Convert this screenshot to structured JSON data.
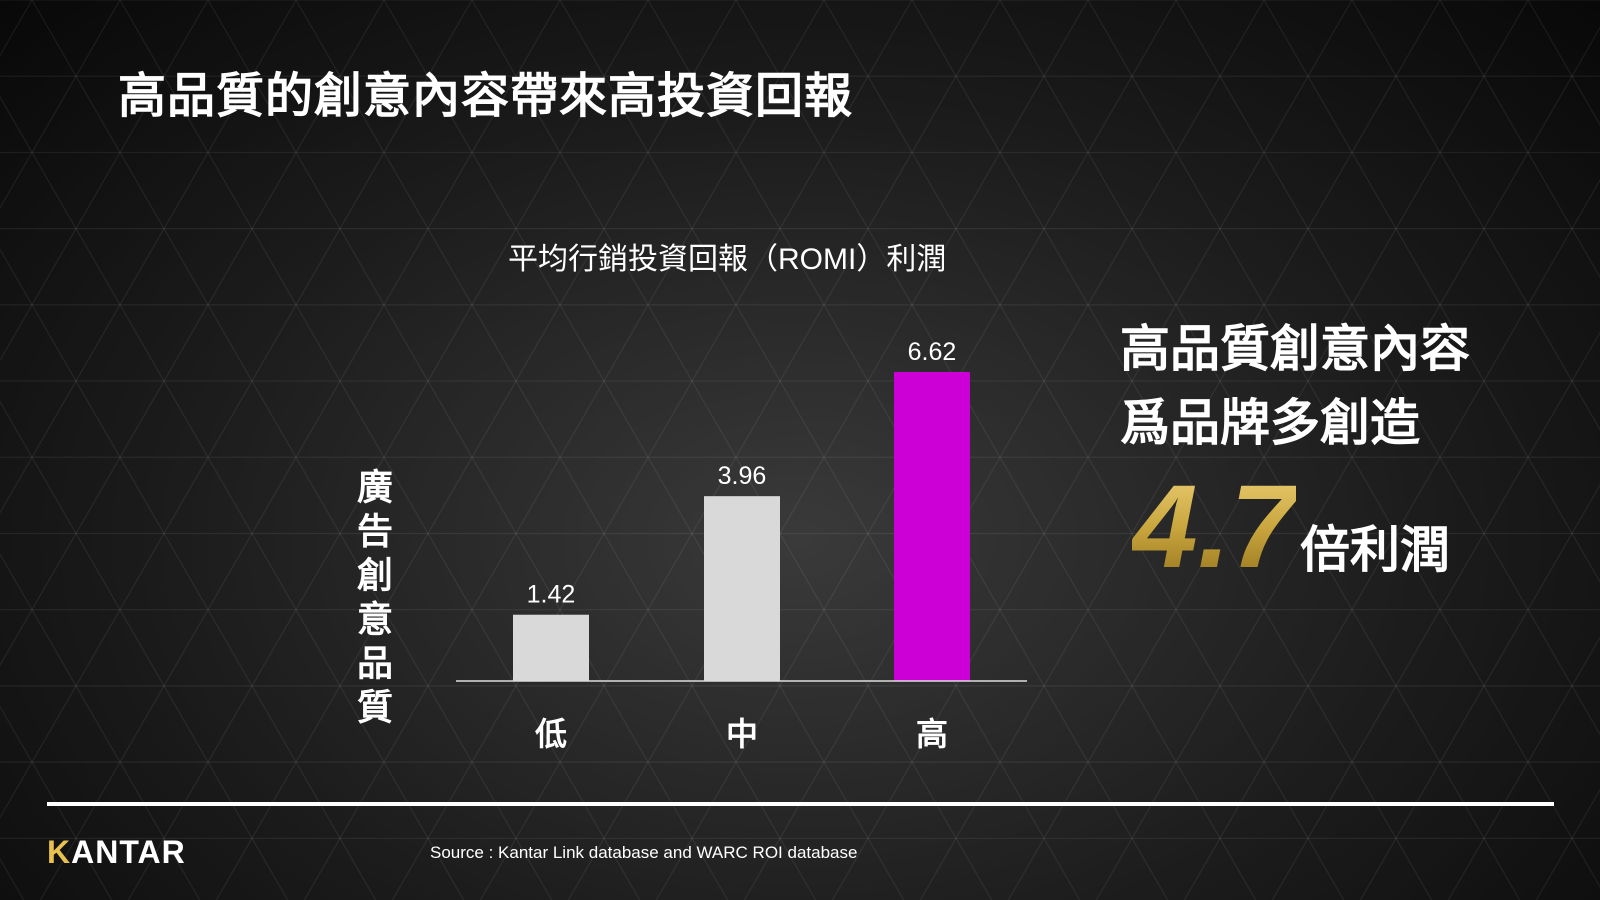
{
  "slide": {
    "title": "高品質的創意內容帶來高投資回報"
  },
  "chart_data": {
    "type": "bar",
    "title": "平均行銷投資回報（ROMI）利潤",
    "ylabel": "廣告創意品質",
    "xlabel": "",
    "categories": [
      "低",
      "中",
      "高"
    ],
    "values": [
      1.42,
      3.96,
      6.62
    ],
    "data_labels": [
      "1.42",
      "3.96",
      "6.62"
    ],
    "ylim": [
      0,
      6.62
    ],
    "bar_colors": [
      "#d9d9d9",
      "#d9d9d9",
      "#cc00d6"
    ],
    "grid": false,
    "legend": "none"
  },
  "highlight": {
    "line1": "高品質創意內容",
    "line2": "爲品牌多創造",
    "number": "4.7",
    "suffix": "倍利潤",
    "number_color": "#c9a63e"
  },
  "footer": {
    "logo_initial": "K",
    "logo_rest": "ANTAR",
    "source": "Source : Kantar Link database and WARC ROI database"
  }
}
